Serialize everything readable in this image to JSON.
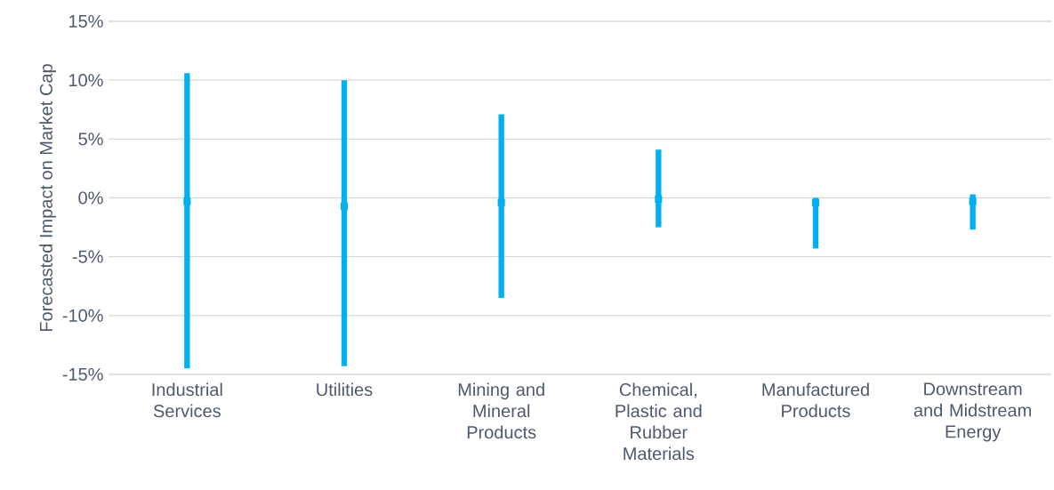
{
  "chart_data": {
    "type": "bar",
    "ylabel": "Forecasted Impact on Market Cap",
    "categories": [
      "Industrial Services",
      "Utilities",
      "Mining and Mineral Products",
      "Chemical, Plastic and Rubber Materials",
      "Manufactured Products",
      "Downstream and Midstream Energy"
    ],
    "ylim": [
      -15,
      15
    ],
    "yticks": [
      {
        "value": -15,
        "label": "-15%"
      },
      {
        "value": -10,
        "label": "-10%"
      },
      {
        "value": -5,
        "label": "-5%"
      },
      {
        "value": 0,
        "label": "0%"
      },
      {
        "value": 5,
        "label": "5%"
      },
      {
        "value": 10,
        "label": "10%"
      },
      {
        "value": 15,
        "label": "15%"
      }
    ],
    "grid": "y",
    "series": [
      {
        "color": "#00b0f0",
        "base": [
          -14.5,
          -14.3,
          -8.5,
          -2.5,
          -4.3,
          -2.7
        ],
        "values": [
          25.1,
          24.3,
          15.6,
          6.6,
          4.3,
          3.0
        ]
      },
      {
        "type": "scatter",
        "color": "#00b0f0",
        "marker": "square",
        "x": [
          "Industrial Services",
          "Utilities",
          "Mining and Mineral Products",
          "Chemical, Plastic and Rubber Materials",
          "Manufactured Products",
          "Downstream and Midstream Energy"
        ],
        "values": [
          -0.3,
          -0.7,
          -0.4,
          -0.1,
          -0.4,
          -0.3
        ]
      }
    ]
  }
}
